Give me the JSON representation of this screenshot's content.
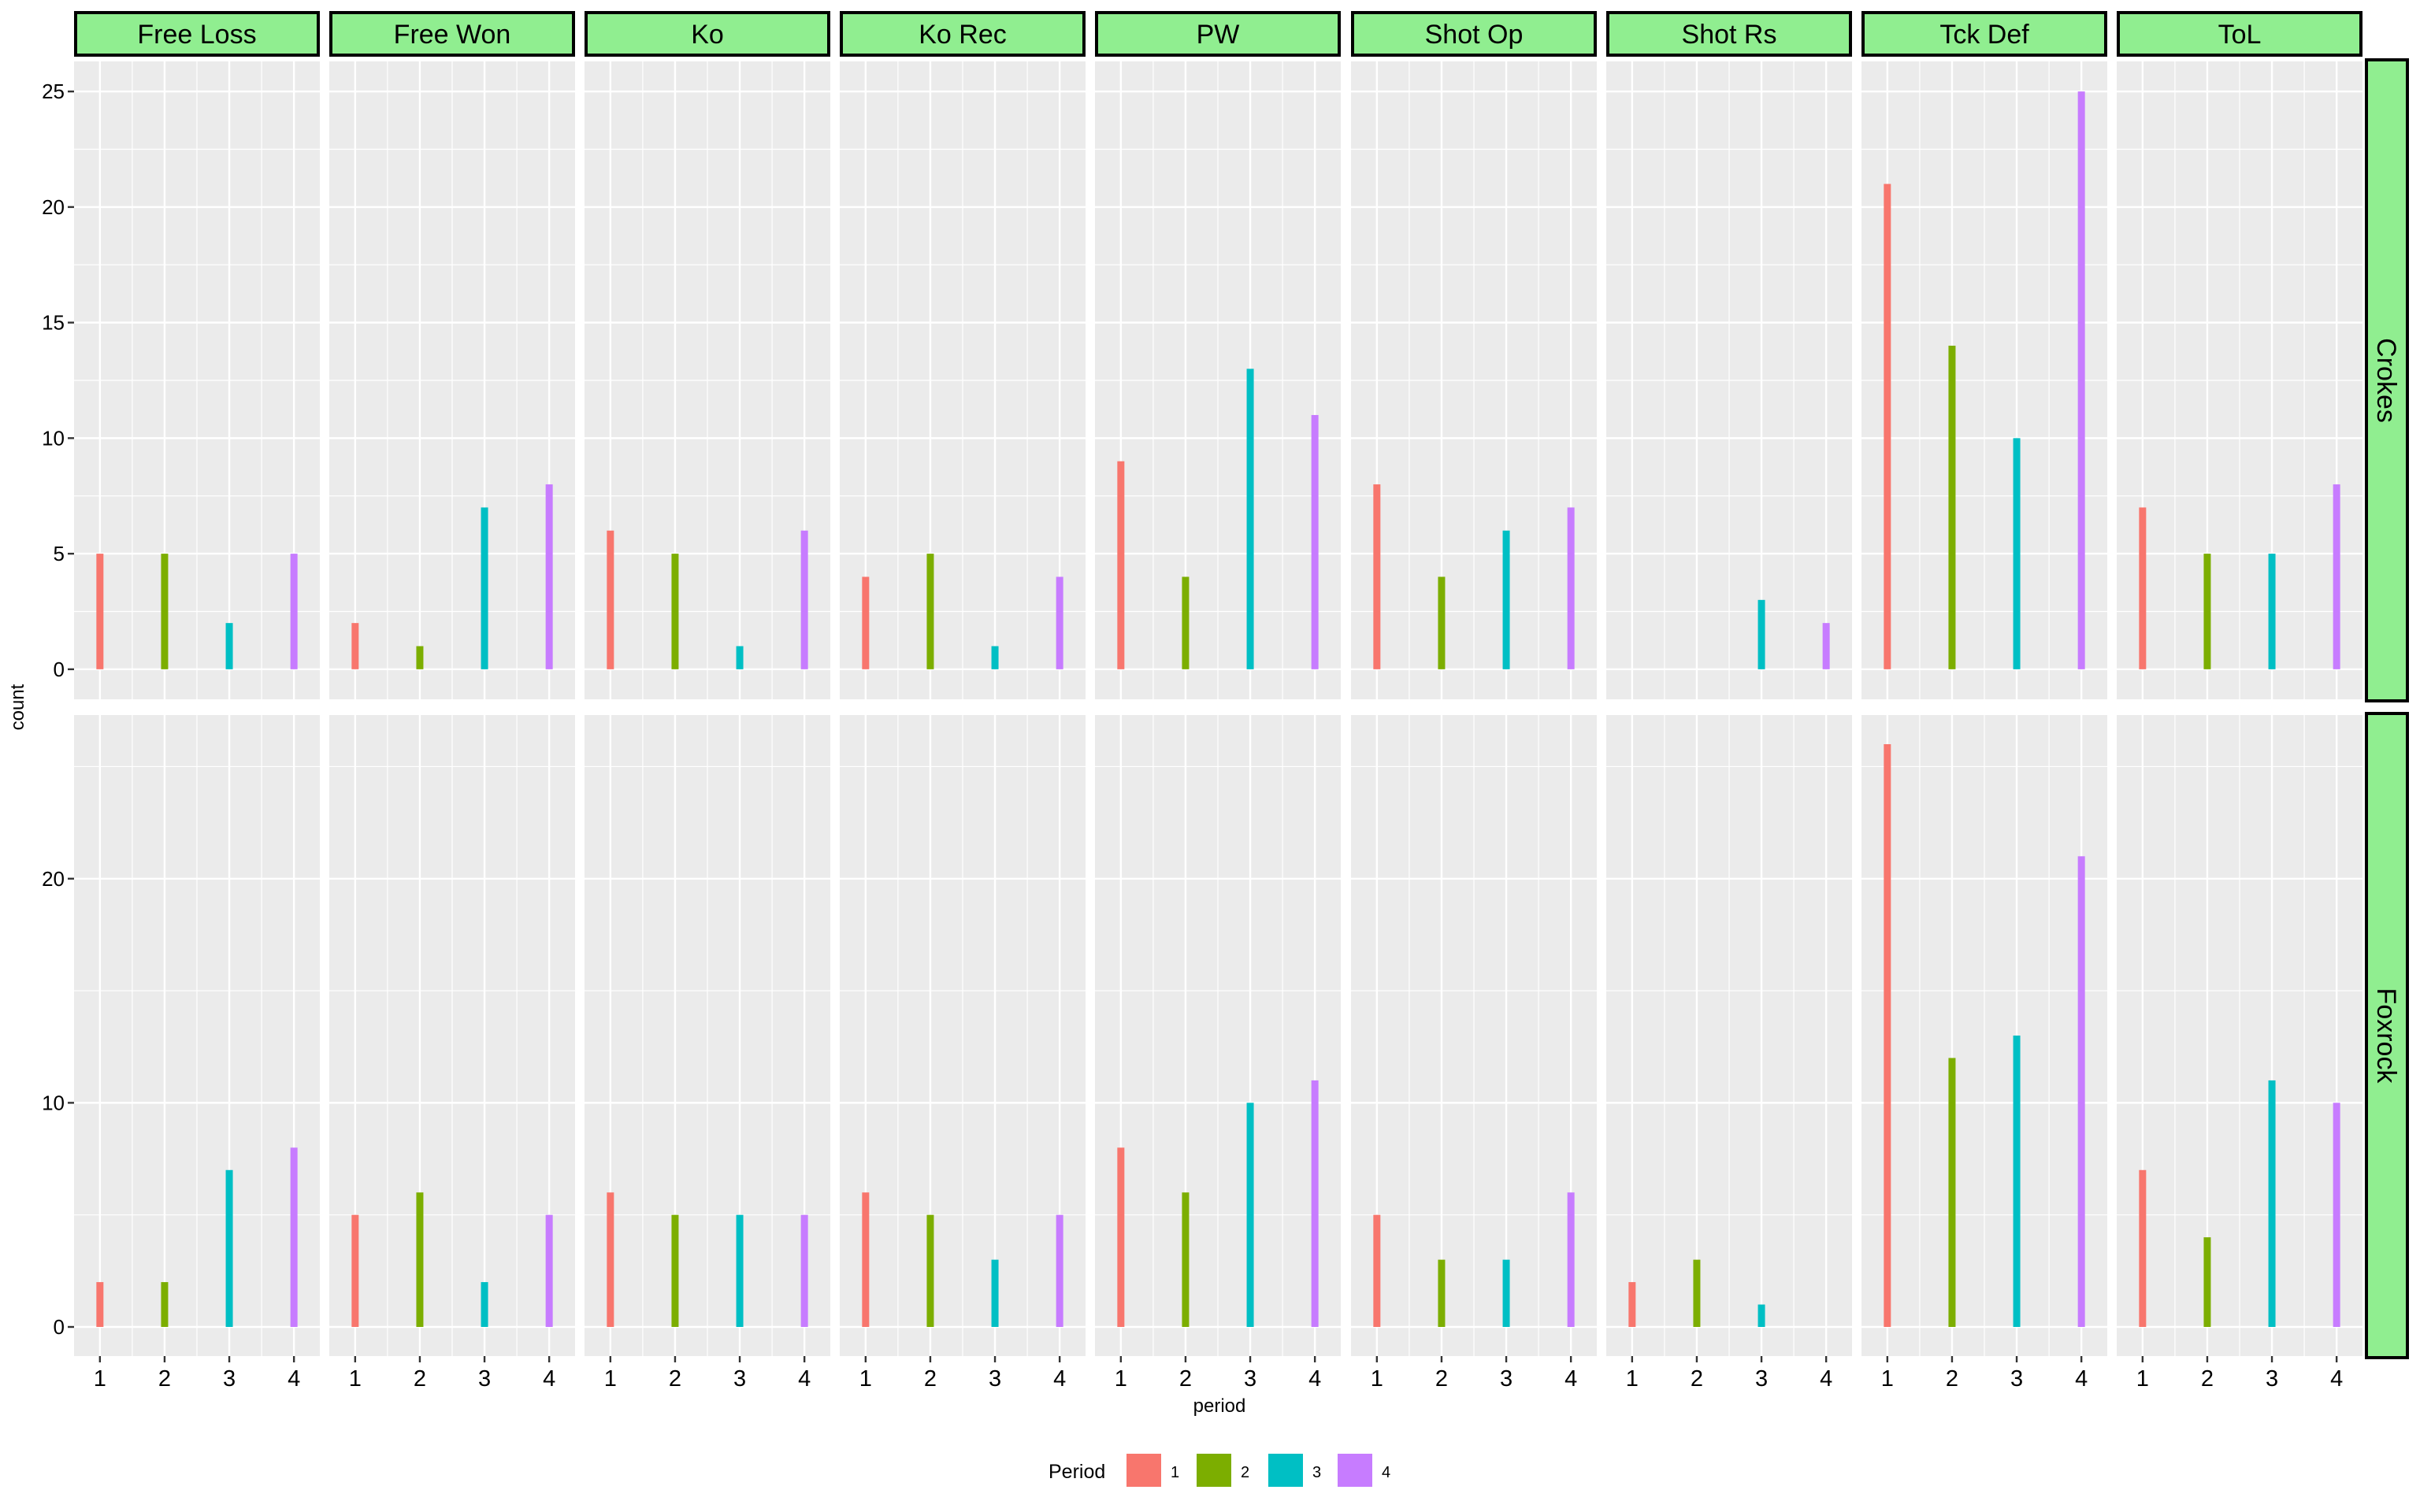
{
  "chart_data": {
    "type": "bar",
    "facet_columns": [
      "Free Loss",
      "Free Won",
      "Ko",
      "Ko Rec",
      "PW",
      "Shot Op",
      "Shot Rs",
      "Tck Def",
      "ToL"
    ],
    "facet_rows": [
      "Crokes",
      "Foxrock"
    ],
    "x": [
      1,
      2,
      3,
      4
    ],
    "xlabel": "period",
    "ylabel": "count",
    "legend": {
      "title": "Period",
      "entries": [
        "1",
        "2",
        "3",
        "4"
      ],
      "colors": [
        "#F8766D",
        "#7CAE00",
        "#00BFC4",
        "#C77CFF"
      ],
      "position": "bottom"
    },
    "panels": [
      {
        "row": "Crokes",
        "ylim": [
          -1.3,
          26.3
        ],
        "yticks": [
          0,
          5,
          10,
          15,
          20,
          25
        ],
        "values": {
          "Free Loss": [
            5,
            5,
            2,
            5
          ],
          "Free Won": [
            2,
            1,
            7,
            8
          ],
          "Ko": [
            6,
            5,
            1,
            6
          ],
          "Ko Rec": [
            4,
            5,
            1,
            4
          ],
          "PW": [
            9,
            4,
            13,
            11
          ],
          "Shot Op": [
            8,
            4,
            6,
            7
          ],
          "Shot Rs": [
            null,
            null,
            3,
            2
          ],
          "Tck Def": [
            21,
            14,
            10,
            25
          ],
          "ToL": [
            7,
            5,
            5,
            8
          ]
        }
      },
      {
        "row": "Foxrock",
        "ylim": [
          -1.3,
          27.3
        ],
        "yticks": [
          0,
          10,
          20
        ],
        "values": {
          "Free Loss": [
            2,
            2,
            7,
            8
          ],
          "Free Won": [
            5,
            6,
            2,
            5
          ],
          "Ko": [
            6,
            5,
            5,
            5
          ],
          "Ko Rec": [
            6,
            5,
            3,
            5
          ],
          "PW": [
            8,
            6,
            10,
            11
          ],
          "Shot Op": [
            5,
            3,
            3,
            6
          ],
          "Shot Rs": [
            2,
            3,
            1,
            null
          ],
          "Tck Def": [
            26,
            12,
            13,
            21
          ],
          "ToL": [
            7,
            4,
            11,
            10
          ]
        }
      }
    ],
    "grid": true,
    "strip_fill": "#90EE90",
    "panel_background": "#EBEBEB"
  }
}
